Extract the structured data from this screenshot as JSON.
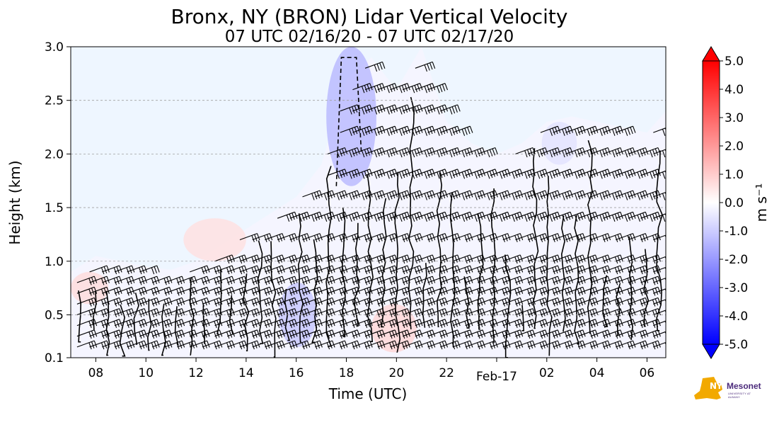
{
  "chart_data": {
    "type": "heatmap",
    "title": "Bronx, NY (BRON) Lidar Vertical Velocity",
    "subtitle": "07 UTC 02/16/20 - 07 UTC 02/17/20",
    "xlabel": "Time (UTC)",
    "ylabel": "Height (km)",
    "x_range_hours": [
      7.0,
      30.75
    ],
    "x_ticks": [
      {
        "hour": 8,
        "label": "08"
      },
      {
        "hour": 10,
        "label": "10"
      },
      {
        "hour": 12,
        "label": "12"
      },
      {
        "hour": 14,
        "label": "14"
      },
      {
        "hour": 16,
        "label": "16"
      },
      {
        "hour": 18,
        "label": "18"
      },
      {
        "hour": 20,
        "label": "20"
      },
      {
        "hour": 22,
        "label": "22"
      },
      {
        "hour": 24,
        "label": "Feb-17"
      },
      {
        "hour": 26,
        "label": "02"
      },
      {
        "hour": 28,
        "label": "04"
      },
      {
        "hour": 30,
        "label": "06"
      }
    ],
    "ylim": [
      0.1,
      3.0
    ],
    "y_ticks": [
      {
        "value": 0.1,
        "label": "0.1"
      },
      {
        "value": 0.5,
        "label": "0.5"
      },
      {
        "value": 1.0,
        "label": "1.0"
      },
      {
        "value": 1.5,
        "label": "1.5"
      },
      {
        "value": 2.0,
        "label": "2.0"
      },
      {
        "value": 2.5,
        "label": "2.5"
      },
      {
        "value": 3.0,
        "label": "3.0"
      }
    ],
    "grid": "horizontal dashed",
    "colorbar": {
      "label": "m s⁻¹",
      "range": [
        -5.0,
        5.0
      ],
      "ticks": [
        "5.0",
        "4.0",
        "3.0",
        "2.0",
        "1.0",
        "0.0",
        "-1.0",
        "-2.0",
        "-3.0",
        "-4.0",
        "-5.0"
      ],
      "tick_values": [
        5,
        4,
        3,
        2,
        1,
        0,
        -1,
        -2,
        -3,
        -4,
        -5
      ],
      "colors": [
        "#0000ff",
        "#ffffff",
        "#ff0000"
      ]
    },
    "data_top_km": [
      {
        "t": 7.0,
        "h": 0.9
      },
      {
        "t": 8.0,
        "h": 1.05
      },
      {
        "t": 9.0,
        "h": 1.0
      },
      {
        "t": 10.0,
        "h": 0.95
      },
      {
        "t": 11.0,
        "h": 0.92
      },
      {
        "t": 12.0,
        "h": 1.0
      },
      {
        "t": 13.0,
        "h": 1.15
      },
      {
        "t": 14.0,
        "h": 1.3
      },
      {
        "t": 15.0,
        "h": 1.45
      },
      {
        "t": 16.0,
        "h": 1.6
      },
      {
        "t": 17.0,
        "h": 1.9
      },
      {
        "t": 18.0,
        "h": 2.7
      },
      {
        "t": 19.0,
        "h": 2.9
      },
      {
        "t": 20.0,
        "h": 2.6
      },
      {
        "t": 21.0,
        "h": 3.0
      },
      {
        "t": 22.0,
        "h": 2.3
      },
      {
        "t": 23.0,
        "h": 2.1
      },
      {
        "t": 24.0,
        "h": 2.0
      },
      {
        "t": 25.0,
        "h": 2.1
      },
      {
        "t": 26.0,
        "h": 2.3
      },
      {
        "t": 27.0,
        "h": 2.35
      },
      {
        "t": 28.0,
        "h": 2.3
      },
      {
        "t": 29.0,
        "h": 2.25
      },
      {
        "t": 30.0,
        "h": 2.2
      },
      {
        "t": 30.75,
        "h": 2.4
      }
    ],
    "downdraft_regions": [
      {
        "t0": 17.2,
        "t1": 19.2,
        "h0": 1.7,
        "h1": 3.0,
        "w": -1.5
      },
      {
        "t0": 15.3,
        "t1": 16.8,
        "h0": 0.2,
        "h1": 0.8,
        "w": -1.2
      },
      {
        "t0": 25.8,
        "t1": 27.2,
        "h0": 1.9,
        "h1": 2.3,
        "w": -0.6
      }
    ],
    "updraft_regions": [
      {
        "t0": 11.5,
        "t1": 14.0,
        "h0": 1.0,
        "h1": 1.4,
        "w": 0.6
      },
      {
        "t0": 19.0,
        "t1": 20.8,
        "h0": 0.15,
        "h1": 0.6,
        "w": 0.8
      },
      {
        "t0": 7.0,
        "t1": 8.5,
        "h0": 0.6,
        "h1": 0.9,
        "w": 0.7
      }
    ],
    "background_w": -0.2,
    "barb_interval_hours": 0.5,
    "barb_levels_km": [
      0.2,
      0.3,
      0.4,
      0.5,
      0.6,
      0.7,
      0.8,
      0.9,
      1.0,
      1.2,
      1.4,
      1.6,
      1.8,
      2.0,
      2.2,
      2.4,
      2.6,
      2.8
    ],
    "wind_direction_deg": 290
  },
  "logo": {
    "name": "Mesonet",
    "prefix": "NYS",
    "subtext": "UNIVERSITY AT ALBANY",
    "colors": {
      "state": "#f2a900",
      "text": "#4b2a7b"
    }
  }
}
